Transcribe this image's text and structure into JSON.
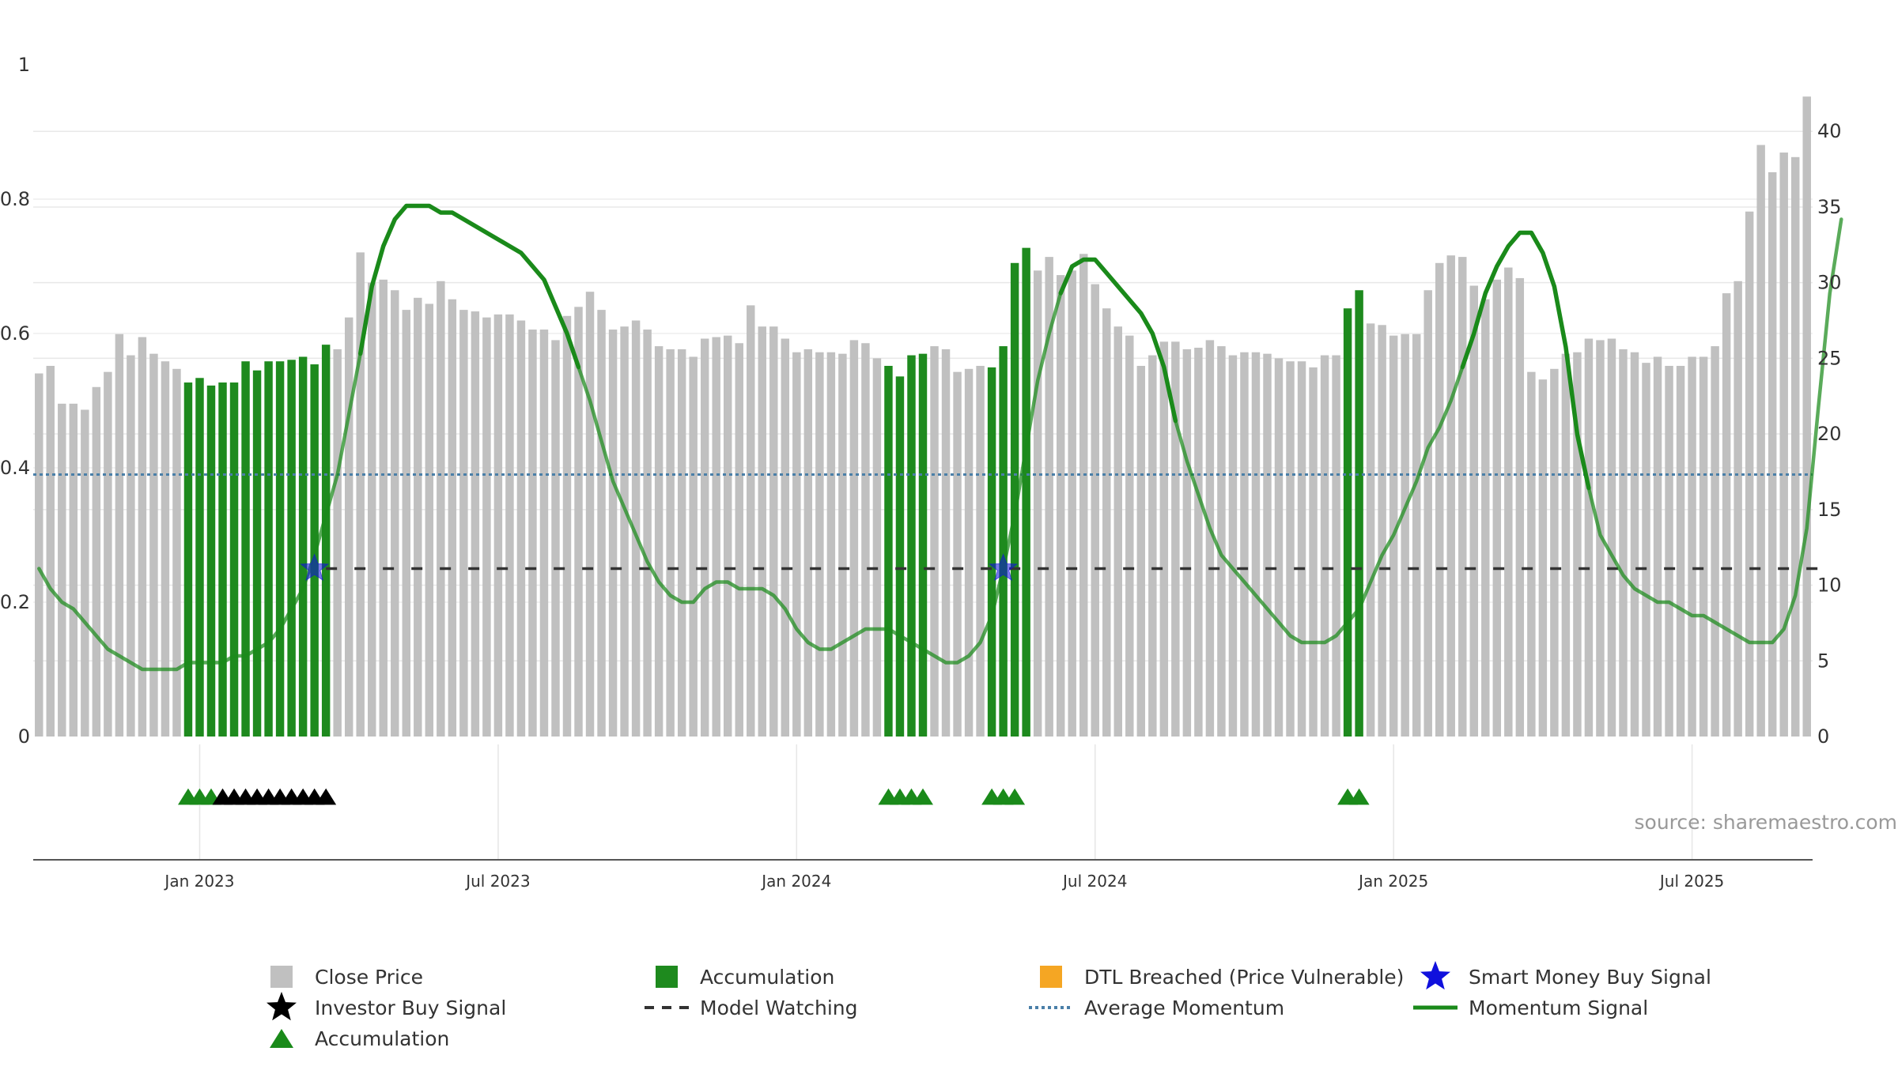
{
  "chart_data": {
    "type": "bar",
    "title": "",
    "source": "source: sharemaestro.com",
    "colors": {
      "price_bar": "#c0c0c0",
      "accumulation_bar": "#1e8a1e",
      "momentum_line": "#1a8a1a",
      "average_momentum": "#4a7fa8",
      "model_watching": "#333333",
      "smart_money": "#1010dd",
      "investor_buy": "#000000",
      "accumulation_marker": "#1a8a1a",
      "dtl_breached": "#f5a623"
    },
    "left_axis": {
      "ylim": [
        0,
        1
      ],
      "ticks": [
        0,
        0.2,
        0.4,
        0.6,
        0.8,
        1
      ],
      "tick_labels": [
        "0",
        "0.2",
        "0.4",
        "0.6",
        "0.8",
        "1"
      ]
    },
    "right_axis": {
      "ylim": [
        0,
        44.4
      ],
      "ticks": [
        0,
        5,
        10,
        15,
        20,
        25,
        30,
        35,
        40
      ],
      "tick_labels": [
        "0",
        "5",
        "10",
        "15",
        "20",
        "25",
        "30",
        "35",
        "40"
      ]
    },
    "x_axis": {
      "start_index": 0,
      "end_index": 156,
      "ticks": [
        {
          "index": 14,
          "label": "Jan 2023"
        },
        {
          "index": 40,
          "label": "Jul 2023"
        },
        {
          "index": 66,
          "label": "Jan 2024"
        },
        {
          "index": 92,
          "label": "Jul 2024"
        },
        {
          "index": 118,
          "label": "Jan 2025"
        },
        {
          "index": 144,
          "label": "Jul 2025"
        }
      ]
    },
    "close_price": [
      24.0,
      24.5,
      22.0,
      22.0,
      21.6,
      23.1,
      24.1,
      26.6,
      25.2,
      26.4,
      25.3,
      24.8,
      24.3,
      23.4,
      23.7,
      23.2,
      23.4,
      23.4,
      24.8,
      24.2,
      24.8,
      24.8,
      24.9,
      25.1,
      24.6,
      25.9,
      25.6,
      27.7,
      32.0,
      30.0,
      30.2,
      29.5,
      28.2,
      29.0,
      28.6,
      30.1,
      28.9,
      28.2,
      28.1,
      27.7,
      27.9,
      27.9,
      27.5,
      26.9,
      26.9,
      26.2,
      27.8,
      28.4,
      29.4,
      28.2,
      26.9,
      27.1,
      27.5,
      26.9,
      25.8,
      25.6,
      25.6,
      25.1,
      26.3,
      26.4,
      26.5,
      26.0,
      28.5,
      27.1,
      27.1,
      26.3,
      25.4,
      25.6,
      25.4,
      25.4,
      25.3,
      26.2,
      26.0,
      25.0,
      24.5,
      23.8,
      25.2,
      25.3,
      25.8,
      25.6,
      24.1,
      24.3,
      24.5,
      24.4,
      25.8,
      31.3,
      32.3,
      30.8,
      31.7,
      30.5,
      30.8,
      31.9,
      29.9,
      28.3,
      27.1,
      26.5,
      24.5,
      25.2,
      26.1,
      26.1,
      25.6,
      25.7,
      26.2,
      25.8,
      25.2,
      25.4,
      25.4,
      25.3,
      25.0,
      24.8,
      24.8,
      24.4,
      25.2,
      25.2,
      28.3,
      29.5,
      27.3,
      27.2,
      26.5,
      26.6,
      26.6,
      29.5,
      31.3,
      31.8,
      31.7,
      29.8,
      28.9,
      30.2,
      31.0,
      30.3,
      24.1,
      23.6,
      24.3,
      25.3,
      25.4,
      26.3,
      26.2,
      26.3,
      25.6,
      25.4,
      24.7,
      25.1,
      24.5,
      24.5,
      25.1,
      25.1,
      25.8,
      29.3,
      30.1,
      34.7,
      39.1,
      37.3,
      38.6,
      38.3,
      42.3
    ],
    "accumulation_bar_indices": [
      13,
      14,
      15,
      16,
      17,
      18,
      19,
      20,
      21,
      22,
      23,
      24,
      25,
      74,
      75,
      76,
      77,
      83,
      84,
      85,
      86,
      114,
      115
    ],
    "momentum_signal": [
      0.25,
      0.22,
      0.2,
      0.19,
      0.17,
      0.15,
      0.13,
      0.12,
      0.11,
      0.1,
      0.1,
      0.1,
      0.1,
      0.11,
      0.11,
      0.11,
      0.11,
      0.12,
      0.12,
      0.13,
      0.14,
      0.16,
      0.19,
      0.22,
      0.27,
      0.33,
      0.39,
      0.48,
      0.57,
      0.67,
      0.73,
      0.77,
      0.79,
      0.79,
      0.79,
      0.78,
      0.78,
      0.77,
      0.76,
      0.75,
      0.74,
      0.73,
      0.72,
      0.7,
      0.68,
      0.64,
      0.6,
      0.55,
      0.5,
      0.44,
      0.38,
      0.34,
      0.3,
      0.26,
      0.23,
      0.21,
      0.2,
      0.2,
      0.22,
      0.23,
      0.23,
      0.22,
      0.22,
      0.22,
      0.21,
      0.19,
      0.16,
      0.14,
      0.13,
      0.13,
      0.14,
      0.15,
      0.16,
      0.16,
      0.16,
      0.15,
      0.14,
      0.13,
      0.12,
      0.11,
      0.11,
      0.12,
      0.14,
      0.18,
      0.25,
      0.33,
      0.43,
      0.53,
      0.6,
      0.66,
      0.7,
      0.71,
      0.71,
      0.69,
      0.67,
      0.65,
      0.63,
      0.6,
      0.55,
      0.47,
      0.41,
      0.36,
      0.31,
      0.27,
      0.25,
      0.23,
      0.21,
      0.19,
      0.17,
      0.15,
      0.14,
      0.14,
      0.14,
      0.15,
      0.17,
      0.19,
      0.23,
      0.27,
      0.3,
      0.34,
      0.38,
      0.43,
      0.46,
      0.5,
      0.55,
      0.6,
      0.66,
      0.7,
      0.73,
      0.75,
      0.75,
      0.72,
      0.67,
      0.58,
      0.45,
      0.37,
      0.3,
      0.27,
      0.24,
      0.22,
      0.21,
      0.2,
      0.2,
      0.19,
      0.18,
      0.18,
      0.17,
      0.16,
      0.15,
      0.14,
      0.14,
      0.14,
      0.16,
      0.21,
      0.31,
      0.49,
      0.66,
      0.77
    ],
    "momentum_emphasis_ranges": [
      [
        28,
        47
      ],
      [
        89,
        99
      ],
      [
        124,
        135
      ]
    ],
    "average_momentum": 0.39,
    "model_watching": {
      "level": 0.25,
      "from_index": 25,
      "to_index": 155
    },
    "smart_money_signals": [
      {
        "index": 24,
        "value": 0.25
      },
      {
        "index": 84,
        "value": 0.25
      }
    ],
    "accumulation_markers": [
      13,
      14,
      15,
      74,
      75,
      76,
      77,
      83,
      84,
      85,
      114,
      115
    ],
    "investor_buy_markers": [
      16,
      17,
      18,
      19,
      20,
      21,
      22,
      23,
      24,
      25
    ],
    "legend": [
      {
        "label": "Close Price",
        "symbol": "grey-square"
      },
      {
        "label": "Accumulation",
        "symbol": "green-square"
      },
      {
        "label": "DTL Breached (Price Vulnerable)",
        "symbol": "orange-square"
      },
      {
        "label": "Smart Money Buy Signal",
        "symbol": "blue-star"
      },
      {
        "label": "Investor Buy Signal",
        "symbol": "black-star"
      },
      {
        "label": "Model Watching",
        "symbol": "black-dashed-line"
      },
      {
        "label": "Average Momentum",
        "symbol": "blue-dotted-line"
      },
      {
        "label": "Momentum Signal",
        "symbol": "green-line"
      },
      {
        "label": "Accumulation",
        "symbol": "green-triangle"
      }
    ]
  }
}
